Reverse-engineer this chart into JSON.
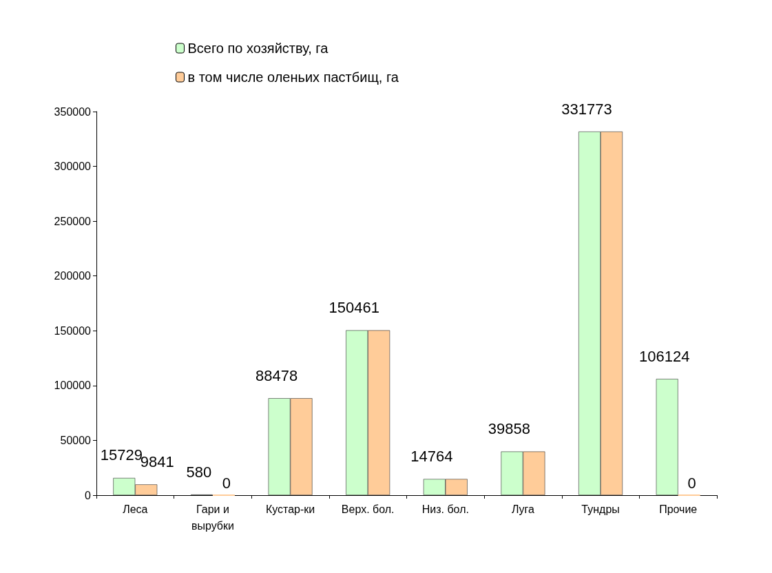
{
  "chart_data": {
    "type": "bar",
    "categories": [
      "Леса",
      "Гари и\nвырубки",
      "Кустар-ки",
      "Верх. бол.",
      "Низ. бол.",
      "Луга",
      "Тундры",
      "Прочие"
    ],
    "series": [
      {
        "name": "Всего по хозяйству, га",
        "color": "#ccffcc",
        "values": [
          15729,
          580,
          88478,
          150461,
          14764,
          39858,
          331773,
          106124
        ],
        "value_labels": [
          "15729",
          "580",
          "88478",
          "150461",
          "14764",
          "39858",
          "331773",
          "106124"
        ]
      },
      {
        "name": "в том числе оленьих пастбищ, га",
        "color": "#ffcc99",
        "values": [
          9841,
          0,
          88478,
          150461,
          14764,
          39858,
          331773,
          0
        ],
        "value_labels": [
          "9841",
          "0",
          null,
          null,
          null,
          null,
          null,
          "0"
        ]
      }
    ],
    "ylim": [
      0,
      350000
    ],
    "yticks": [
      0,
      50000,
      100000,
      150000,
      200000,
      250000,
      300000,
      350000
    ],
    "grid": false,
    "legend": "top"
  }
}
